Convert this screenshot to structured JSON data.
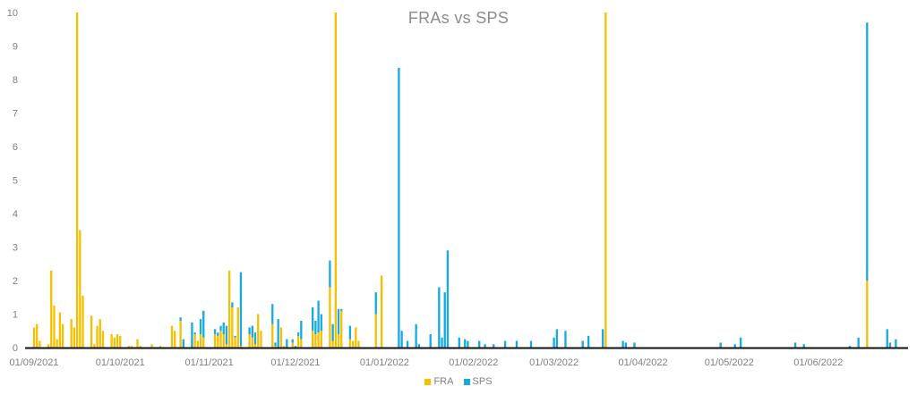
{
  "chart_data": {
    "type": "bar",
    "stacked": true,
    "title": "FRAs vs SPS",
    "xlabel": "",
    "ylabel": "",
    "ylim": [
      0,
      10
    ],
    "yticks": [
      "0",
      "1",
      "2",
      "3",
      "4",
      "5",
      "6",
      "7",
      "8",
      "9",
      "10"
    ],
    "xlim": [
      "2021-09-01",
      "2022-07-01"
    ],
    "xticks": [
      {
        "date": "2021-09-01",
        "label": "01/09/2021"
      },
      {
        "date": "2021-10-01",
        "label": "01/10/2021"
      },
      {
        "date": "2021-11-01",
        "label": "01/11/2021"
      },
      {
        "date": "2021-12-01",
        "label": "01/12/2021"
      },
      {
        "date": "2022-01-01",
        "label": "01/01/2022"
      },
      {
        "date": "2022-02-01",
        "label": "01/02/2022"
      },
      {
        "date": "2022-03-01",
        "label": "01/03/2022"
      },
      {
        "date": "2022-04-01",
        "label": "01/04/2022"
      },
      {
        "date": "2022-05-01",
        "label": "01/05/2022"
      },
      {
        "date": "2022-06-01",
        "label": "01/06/2022"
      }
    ],
    "grid": false,
    "legend_position": "bottom",
    "series": [
      {
        "name": "FRA",
        "color": "#f5c000",
        "points": [
          [
            "2021-09-01",
            0.6
          ],
          [
            "2021-09-02",
            0.7
          ],
          [
            "2021-09-03",
            0.2
          ],
          [
            "2021-09-06",
            0.1
          ],
          [
            "2021-09-07",
            2.3
          ],
          [
            "2021-09-08",
            1.25
          ],
          [
            "2021-09-09",
            0.25
          ],
          [
            "2021-09-10",
            1.05
          ],
          [
            "2021-09-11",
            0.7
          ],
          [
            "2021-09-14",
            0.85
          ],
          [
            "2021-09-15",
            0.6
          ],
          [
            "2021-09-16",
            10
          ],
          [
            "2021-09-17",
            3.5
          ],
          [
            "2021-09-18",
            1.55
          ],
          [
            "2021-09-21",
            0.95
          ],
          [
            "2021-09-22",
            0.1
          ],
          [
            "2021-09-23",
            0.65
          ],
          [
            "2021-09-24",
            0.85
          ],
          [
            "2021-09-25",
            0.5
          ],
          [
            "2021-09-28",
            0.4
          ],
          [
            "2021-09-29",
            0.3
          ],
          [
            "2021-09-30",
            0.4
          ],
          [
            "2021-10-01",
            0.35
          ],
          [
            "2021-10-04",
            0.05
          ],
          [
            "2021-10-05",
            0.05
          ],
          [
            "2021-10-07",
            0.25
          ],
          [
            "2021-10-08",
            0.05
          ],
          [
            "2021-10-12",
            0.1
          ],
          [
            "2021-10-15",
            0.05
          ],
          [
            "2021-10-19",
            0.65
          ],
          [
            "2021-10-20",
            0.5
          ],
          [
            "2021-10-22",
            0.8
          ],
          [
            "2021-10-27",
            0.4
          ],
          [
            "2021-10-28",
            0.2
          ],
          [
            "2021-10-29",
            0.4
          ],
          [
            "2021-10-30",
            0.3
          ],
          [
            "2021-11-03",
            0.4
          ],
          [
            "2021-11-04",
            0.35
          ],
          [
            "2021-11-05",
            0.5
          ],
          [
            "2021-11-06",
            0.4
          ],
          [
            "2021-11-07",
            0.1
          ],
          [
            "2021-11-08",
            2.3
          ],
          [
            "2021-11-09",
            1.2
          ],
          [
            "2021-11-10",
            0.3
          ],
          [
            "2021-11-11",
            1.2
          ],
          [
            "2021-11-12",
            0.05
          ],
          [
            "2021-11-15",
            0.4
          ],
          [
            "2021-11-16",
            0.3
          ],
          [
            "2021-11-17",
            0.1
          ],
          [
            "2021-11-18",
            1.0
          ],
          [
            "2021-11-19",
            0.5
          ],
          [
            "2021-11-23",
            0.7
          ],
          [
            "2021-11-24",
            0.05
          ],
          [
            "2021-11-26",
            0.6
          ],
          [
            "2021-11-27",
            0.05
          ],
          [
            "2021-11-30",
            0.15
          ],
          [
            "2021-12-02",
            0.35
          ],
          [
            "2021-12-03",
            0.25
          ],
          [
            "2021-12-07",
            0.5
          ],
          [
            "2021-12-08",
            0.4
          ],
          [
            "2021-12-09",
            0.45
          ],
          [
            "2021-12-10",
            0.5
          ],
          [
            "2021-12-13",
            1.8
          ],
          [
            "2021-12-14",
            0.2
          ],
          [
            "2021-12-15",
            10
          ],
          [
            "2021-12-16",
            0.4
          ],
          [
            "2021-12-17",
            1.1
          ],
          [
            "2021-12-20",
            0.25
          ],
          [
            "2021-12-21",
            0.2
          ],
          [
            "2021-12-22",
            0.6
          ],
          [
            "2021-12-23",
            0.2
          ],
          [
            "2021-12-29",
            1.0
          ],
          [
            "2021-12-31",
            2.15
          ],
          [
            "2022-03-19",
            10
          ],
          [
            "2022-06-18",
            2.0
          ]
        ]
      },
      {
        "name": "SPS",
        "color": "#17a9e0",
        "points": [
          [
            "2021-10-22",
            0.1
          ],
          [
            "2021-10-23",
            0.25
          ],
          [
            "2021-10-26",
            0.75
          ],
          [
            "2021-10-27",
            0.05
          ],
          [
            "2021-10-29",
            0.45
          ],
          [
            "2021-10-30",
            0.8
          ],
          [
            "2021-11-03",
            0.15
          ],
          [
            "2021-11-04",
            0.1
          ],
          [
            "2021-11-05",
            0.15
          ],
          [
            "2021-11-06",
            0.35
          ],
          [
            "2021-11-07",
            0.55
          ],
          [
            "2021-11-09",
            0.15
          ],
          [
            "2021-11-10",
            0.05
          ],
          [
            "2021-11-12",
            2.2
          ],
          [
            "2021-11-15",
            0.2
          ],
          [
            "2021-11-16",
            0.35
          ],
          [
            "2021-11-17",
            0.35
          ],
          [
            "2021-11-23",
            0.6
          ],
          [
            "2021-11-24",
            0.1
          ],
          [
            "2021-11-25",
            0.85
          ],
          [
            "2021-11-28",
            0.25
          ],
          [
            "2021-11-30",
            0.1
          ],
          [
            "2021-12-01",
            0.05
          ],
          [
            "2021-12-02",
            0.1
          ],
          [
            "2021-12-03",
            0.55
          ],
          [
            "2021-12-07",
            0.7
          ],
          [
            "2021-12-08",
            0.4
          ],
          [
            "2021-12-09",
            0.95
          ],
          [
            "2021-12-10",
            0.5
          ],
          [
            "2021-12-13",
            0.8
          ],
          [
            "2021-12-14",
            0.5
          ],
          [
            "2021-12-16",
            0.75
          ],
          [
            "2021-12-17",
            0.05
          ],
          [
            "2021-12-20",
            0.4
          ],
          [
            "2021-12-29",
            0.65
          ],
          [
            "2022-01-06",
            8.35
          ],
          [
            "2022-01-07",
            0.5
          ],
          [
            "2022-01-09",
            0.2
          ],
          [
            "2022-01-12",
            0.7
          ],
          [
            "2022-01-13",
            0.1
          ],
          [
            "2022-01-17",
            0.4
          ],
          [
            "2022-01-20",
            1.8
          ],
          [
            "2022-01-21",
            0.3
          ],
          [
            "2022-01-22",
            1.65
          ],
          [
            "2022-01-23",
            2.9
          ],
          [
            "2022-01-27",
            0.3
          ],
          [
            "2022-01-29",
            0.25
          ],
          [
            "2022-01-30",
            0.2
          ],
          [
            "2022-02-03",
            0.2
          ],
          [
            "2022-02-05",
            0.1
          ],
          [
            "2022-02-08",
            0.1
          ],
          [
            "2022-02-12",
            0.2
          ],
          [
            "2022-02-16",
            0.2
          ],
          [
            "2022-02-21",
            0.2
          ],
          [
            "2022-03-01",
            0.3
          ],
          [
            "2022-03-02",
            0.55
          ],
          [
            "2022-03-05",
            0.5
          ],
          [
            "2022-03-11",
            0.2
          ],
          [
            "2022-03-13",
            0.35
          ],
          [
            "2022-03-18",
            0.55
          ],
          [
            "2022-03-25",
            0.2
          ],
          [
            "2022-03-26",
            0.15
          ],
          [
            "2022-03-29",
            0.15
          ],
          [
            "2022-04-28",
            0.15
          ],
          [
            "2022-05-03",
            0.1
          ],
          [
            "2022-05-05",
            0.3
          ],
          [
            "2022-05-24",
            0.15
          ],
          [
            "2022-05-27",
            0.1
          ],
          [
            "2022-06-12",
            0.05
          ],
          [
            "2022-06-15",
            0.3
          ],
          [
            "2022-06-18",
            7.7
          ],
          [
            "2022-06-25",
            0.55
          ],
          [
            "2022-06-26",
            0.15
          ],
          [
            "2022-06-28",
            0.25
          ]
        ]
      }
    ]
  }
}
